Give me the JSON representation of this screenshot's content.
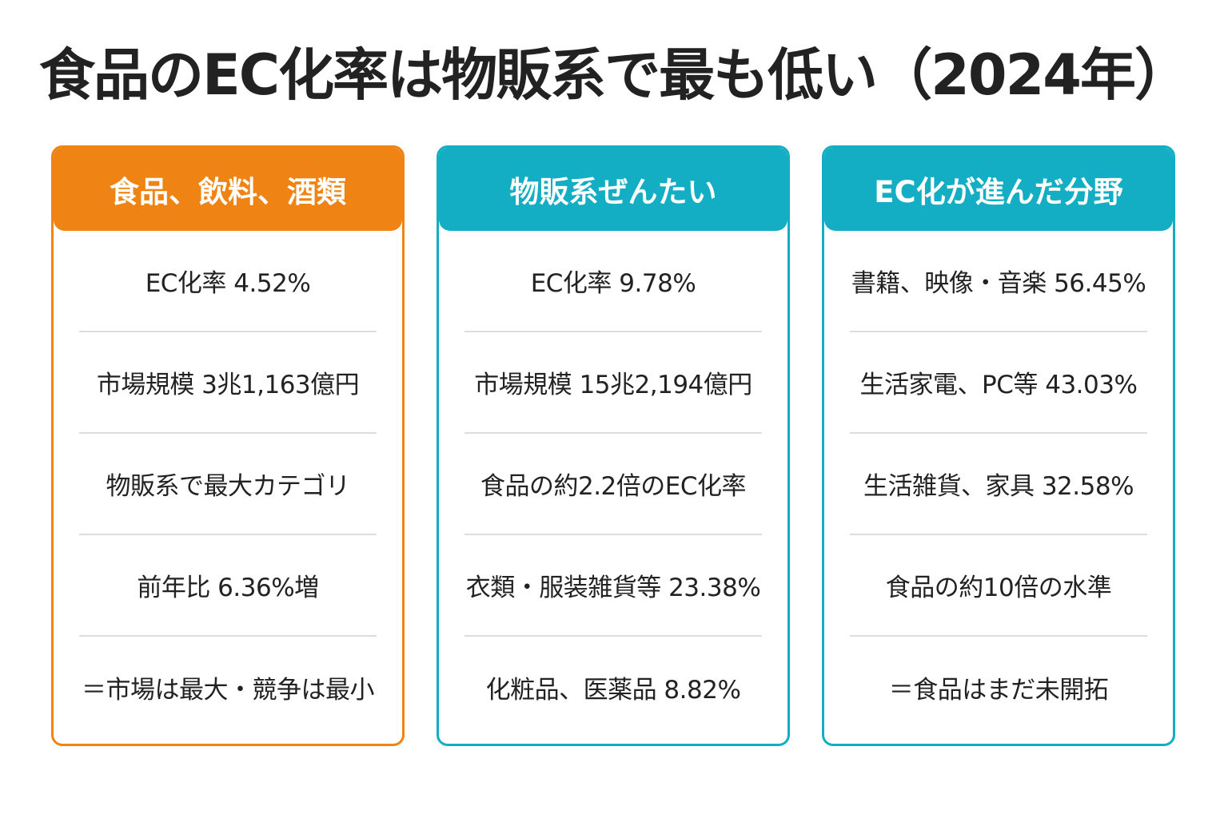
{
  "title": "食品のEC化率は物販系で最も低い（2024年）",
  "colors": {
    "food_accent": "#ef8313",
    "teal_accent": "#14aec4",
    "divider": "#dddddd",
    "text": "#222222"
  },
  "cards": [
    {
      "heading": "食品、飲料、酒類",
      "rows": [
        "EC化率 4.52%",
        "市場規模 3兆1,163億円",
        "物販系で最大カテゴリ",
        "前年比 6.36%増",
        "＝市場は最大・競争は最小"
      ]
    },
    {
      "heading": "物販系ぜんたい",
      "rows": [
        "EC化率 9.78%",
        "市場規模 15兆2,194億円",
        "食品の約2.2倍のEC化率",
        "衣類・服装雑貨等 23.38%",
        "化粧品、医薬品 8.82%"
      ]
    },
    {
      "heading": "EC化が進んだ分野",
      "rows": [
        "書籍、映像・音楽 56.45%",
        "生活家電、PC等 43.03%",
        "生活雑貨、家具 32.58%",
        "食品の約10倍の水準",
        "＝食品はまだ未開拓"
      ]
    }
  ]
}
